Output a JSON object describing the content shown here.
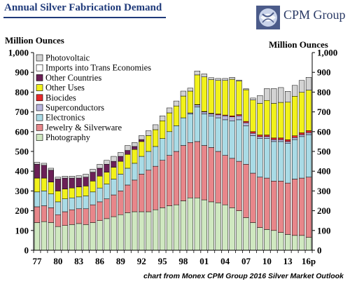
{
  "header": {
    "title": "Annual Silver Fabrication Demand",
    "brand": "CPM Group",
    "source_note": "chart from Monex CPM Group 2016 Silver Market Outlook"
  },
  "chart_data": {
    "type": "bar",
    "stacked": true,
    "title": "Annual Silver Fabrication Demand",
    "ylabel_left": "Million Ounces",
    "ylabel_right": "Million Ounces",
    "ylim": [
      0,
      1000
    ],
    "yticks": [
      "0",
      "100",
      "200",
      "300",
      "400",
      "500",
      "600",
      "700",
      "800",
      "900",
      "1,000"
    ],
    "x_tick_labels": [
      "77",
      "80",
      "83",
      "86",
      "89",
      "92",
      "95",
      "98",
      "01",
      "04",
      "07",
      "10",
      "13",
      "16p"
    ],
    "grid": false,
    "legend_position": "top-left",
    "categories": [
      "1977",
      "1978",
      "1979",
      "1980",
      "1981",
      "1982",
      "1983",
      "1984",
      "1985",
      "1986",
      "1987",
      "1988",
      "1989",
      "1990",
      "1991",
      "1992",
      "1993",
      "1994",
      "1995",
      "1996",
      "1997",
      "1998",
      "1999",
      "2000",
      "2001",
      "2002",
      "2003",
      "2004",
      "2005",
      "2006",
      "2007",
      "2008",
      "2009",
      "2010",
      "2011",
      "2012",
      "2013",
      "2014",
      "2015",
      "2016p"
    ],
    "series": [
      {
        "name": "Photography",
        "color": "#cfe8c0",
        "values": [
          140,
          145,
          140,
          120,
          125,
          130,
          135,
          130,
          140,
          150,
          160,
          170,
          180,
          190,
          195,
          195,
          195,
          205,
          215,
          225,
          230,
          250,
          265,
          265,
          255,
          245,
          240,
          230,
          215,
          200,
          165,
          140,
          115,
          105,
          100,
          90,
          80,
          75,
          75,
          65
        ]
      },
      {
        "name": "Jewelry & Silverware",
        "color": "#e8868a",
        "values": [
          80,
          80,
          75,
          60,
          70,
          75,
          75,
          80,
          90,
          95,
          100,
          110,
          120,
          140,
          160,
          190,
          210,
          220,
          240,
          255,
          270,
          280,
          280,
          285,
          275,
          275,
          260,
          250,
          250,
          250,
          270,
          250,
          255,
          260,
          250,
          260,
          260,
          285,
          290,
          305
        ]
      },
      {
        "name": "Electronics",
        "color": "#a9dbe6",
        "values": [
          75,
          75,
          70,
          65,
          65,
          60,
          60,
          65,
          65,
          70,
          75,
          80,
          85,
          85,
          85,
          90,
          95,
          100,
          110,
          120,
          130,
          140,
          145,
          175,
          160,
          160,
          170,
          180,
          190,
          210,
          195,
          190,
          195,
          200,
          200,
          200,
          200,
          200,
          210,
          215
        ]
      },
      {
        "name": "Superconductors",
        "color": "#b7b4de",
        "values": [
          0,
          0,
          0,
          0,
          0,
          0,
          0,
          0,
          0,
          0,
          0,
          0,
          0,
          0,
          0,
          0,
          0,
          0,
          0,
          0,
          0,
          0,
          5,
          10,
          10,
          10,
          15,
          20,
          20,
          20,
          15,
          12,
          10,
          10,
          10,
          10,
          10,
          10,
          10,
          10
        ]
      },
      {
        "name": "Biocides",
        "color": "#e8282a",
        "values": [
          0,
          0,
          0,
          0,
          0,
          0,
          0,
          0,
          0,
          0,
          0,
          0,
          0,
          0,
          0,
          0,
          0,
          0,
          0,
          0,
          0,
          0,
          0,
          2,
          2,
          3,
          4,
          4,
          5,
          6,
          7,
          8,
          8,
          8,
          8,
          8,
          9,
          9,
          9,
          10
        ]
      },
      {
        "name": "Other Uses",
        "color": "#f2f21a",
        "values": [
          70,
          65,
          60,
          55,
          50,
          50,
          50,
          50,
          55,
          60,
          60,
          60,
          65,
          70,
          70,
          75,
          80,
          85,
          90,
          95,
          100,
          110,
          110,
          150,
          175,
          170,
          170,
          175,
          185,
          170,
          160,
          160,
          160,
          175,
          175,
          180,
          190,
          200,
          205,
          205
        ]
      },
      {
        "name": "Other Countries",
        "color": "#6b2057",
        "values": [
          70,
          65,
          60,
          60,
          55,
          50,
          45,
          45,
          45,
          40,
          40,
          30,
          25,
          20,
          15,
          10,
          0,
          0,
          0,
          0,
          0,
          0,
          0,
          0,
          0,
          0,
          0,
          0,
          0,
          0,
          0,
          0,
          0,
          0,
          0,
          0,
          0,
          0,
          0,
          0
        ]
      },
      {
        "name": "Imports into Trans Economies",
        "color": "#ffffff",
        "values": [
          0,
          0,
          0,
          0,
          0,
          0,
          0,
          0,
          0,
          0,
          0,
          0,
          0,
          0,
          0,
          0,
          0,
          0,
          0,
          0,
          0,
          0,
          0,
          0,
          0,
          0,
          0,
          0,
          0,
          0,
          0,
          0,
          0,
          0,
          0,
          0,
          0,
          0,
          0,
          0
        ]
      },
      {
        "name": "Photovoltaic",
        "color": "#d3d3d3",
        "values": [
          10,
          10,
          10,
          10,
          10,
          10,
          12,
          15,
          15,
          20,
          20,
          25,
          20,
          25,
          20,
          20,
          25,
          25,
          25,
          25,
          25,
          25,
          15,
          20,
          15,
          10,
          10,
          10,
          10,
          5,
          5,
          10,
          40,
          60,
          75,
          75,
          55,
          55,
          60,
          65
        ]
      }
    ]
  }
}
